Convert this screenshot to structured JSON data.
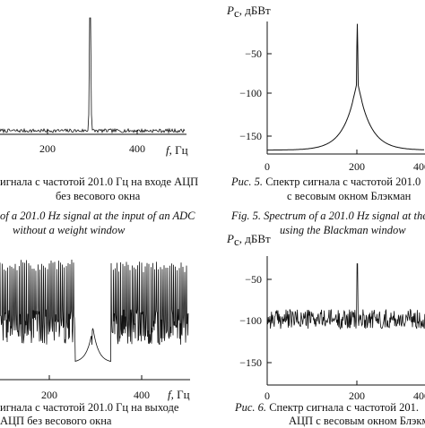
{
  "chart_data": [
    {
      "type": "line",
      "panel": "top-left",
      "xlabel": "f",
      "xunit": ", Гц",
      "x_ticks": [
        200,
        400
      ],
      "peak_x": 201.0,
      "baseline": "noise",
      "grid": false
    },
    {
      "type": "line",
      "panel": "top-right",
      "ylabel": "P",
      "ylabel_sub": "c",
      "yunit": ", дБВт",
      "x_ticks": [
        0,
        200,
        400
      ],
      "y_ticks": [
        -50,
        -100,
        -150
      ],
      "xlim": [
        0,
        500
      ],
      "ylim": [
        -175,
        -5
      ],
      "peak_x": 201.0,
      "peak_y": -8,
      "floor_y": -170,
      "grid": false
    },
    {
      "type": "line",
      "panel": "bottom-left",
      "xlabel": "f",
      "xunit": ", Гц",
      "x_ticks": [
        200,
        400
      ],
      "peak_x": 201.0,
      "grid": false
    },
    {
      "type": "line",
      "panel": "bottom-right",
      "ylabel": "P",
      "ylabel_sub": "c",
      "yunit": ", дБВт",
      "x_ticks": [
        0,
        200,
        400
      ],
      "y_ticks": [
        -50,
        -100,
        -150
      ],
      "xlim": [
        0,
        500
      ],
      "ylim": [
        -175,
        -5
      ],
      "peak_x": 201.0,
      "peak_y": -15,
      "noise_mean_y": -88,
      "grid": false
    }
  ],
  "captions": {
    "tl_ru_1": "игнала с частотой 201.0 Гц на входе АЦП",
    "tl_ru_2": "без весового окна",
    "tl_en_1": "of a 201.0 Hz signal at the input of an ADC",
    "tl_en_2": "without a weight window",
    "tr_ru_1_label": "Рис. 5.",
    "tr_ru_1": " Спектр сигнала с частотой 201.0",
    "tr_ru_2": "с весовым окном Блэкман",
    "tr_en_1_label": "Fig. 5.",
    "tr_en_1": " Spectrum of a 201.0 Hz signal at the",
    "tr_en_2": "using the Blackman window",
    "bl_ru_1": "игнала с частотой 201.0 Гц на выходе",
    "bl_ru_2": "АЦП без весового окна",
    "br_ru_1_label": "Рис. 6.",
    "br_ru_1": " Спектр сигнала с частотой 201.",
    "br_ru_2": "АЦП с весовым окном Блэкм"
  }
}
